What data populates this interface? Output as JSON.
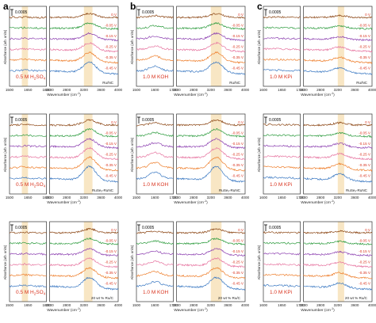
{
  "colors": {
    "series": [
      "#8b4513",
      "#2e9c3f",
      "#8c3fb0",
      "#e6739f",
      "#ee7f2d",
      "#3a78c2"
    ],
    "potential_label": "#d9341f",
    "electrolyte_label": "#d9341f",
    "highlight": "#f5deb0"
  },
  "potentials": [
    "0 V",
    "-0.05 V",
    "-0.15 V",
    "-0.25 V",
    "-0.35 V",
    "-0.45 V"
  ],
  "panel_letters": [
    "a",
    "b",
    "c"
  ],
  "ylabel": "Absorbance (arb. units)",
  "xlabel_prefix": "Wavenumber (cm",
  "xlabel_sup": "-1",
  "xlabel_suffix": ")",
  "scale_bar": "0.0005",
  "ticks": {
    "a": {
      "left": [
        "1500",
        "1650",
        "1800"
      ],
      "right": [
        "2400",
        "2800",
        "3200",
        "3600",
        "4000"
      ]
    },
    "b": {
      "left": [
        "1500",
        "1600",
        "1700"
      ],
      "right": [
        "2400",
        "2800",
        "3200",
        "3600",
        "4000"
      ]
    },
    "c": {
      "left": [
        "1600",
        "1650",
        "1700"
      ],
      "right": [
        "2400",
        "2800",
        "3200",
        "3600",
        "4000"
      ]
    }
  },
  "panels": [
    {
      "col": 0,
      "row": 0,
      "electrolyte_main": "0.5 M H",
      "electrolyte_sub": "2",
      "electrolyte_end": "SO",
      "electrolyte_sub2": "4",
      "catalyst": "Ru/NC"
    },
    {
      "col": 0,
      "row": 1,
      "electrolyte_main": "0.5 M H",
      "electrolyte_sub": "2",
      "electrolyte_end": "SO",
      "electrolyte_sub2": "4",
      "catalyst": "RuSeₓ-RuNC"
    },
    {
      "col": 0,
      "row": 2,
      "electrolyte_main": "0.5 M H",
      "electrolyte_sub": "2",
      "electrolyte_end": "SO",
      "electrolyte_sub2": "4",
      "catalyst": "20 wt % Ru/C"
    },
    {
      "col": 1,
      "row": 0,
      "electrolyte_main": "1.0 M KOH",
      "catalyst": "Ru/NC"
    },
    {
      "col": 1,
      "row": 1,
      "electrolyte_main": "1.0 M KOH",
      "catalyst": "RuSeₓ-RuNC"
    },
    {
      "col": 1,
      "row": 2,
      "electrolyte_main": "1.0 M KOH",
      "catalyst": "20 wt % Ru/C"
    },
    {
      "col": 2,
      "row": 0,
      "electrolyte_main": "1.0 M KPi",
      "catalyst": "Ru/NC"
    },
    {
      "col": 2,
      "row": 1,
      "electrolyte_main": "1.0 M KPi",
      "catalyst": "RuSeₓ-RuNC"
    },
    {
      "col": 2,
      "row": 2,
      "electrolyte_main": "1.0 M KPi",
      "catalyst": "20 wt % Ru/C"
    }
  ],
  "chart_data": {
    "type": "line",
    "description_of_axes": {
      "xlabel": "Wavenumber (cm-1)",
      "ylabel": "Absorbance (arb. units)"
    },
    "x_segments": {
      "a": [
        [
          1500,
          1800
        ],
        [
          2400,
          4000
        ]
      ],
      "b": [
        [
          1500,
          1700
        ],
        [
          2400,
          4000
        ]
      ],
      "c": [
        [
          1600,
          1700
        ],
        [
          2400,
          4000
        ]
      ]
    },
    "series_names": [
      "0 V",
      "-0.05 V",
      "-0.15 V",
      "-0.25 V",
      "-0.35 V",
      "-0.45 V"
    ],
    "highlight_bands": {
      "a": [
        [
          1600,
          1650
        ],
        [
          3200,
          3400
        ]
      ],
      "b": [
        [
          3200,
          3450
        ]
      ],
      "c": [
        [
          3200,
          3350
        ]
      ]
    },
    "peak_center_O_H": 3300,
    "peak_center_H_O_H": 1620
  }
}
